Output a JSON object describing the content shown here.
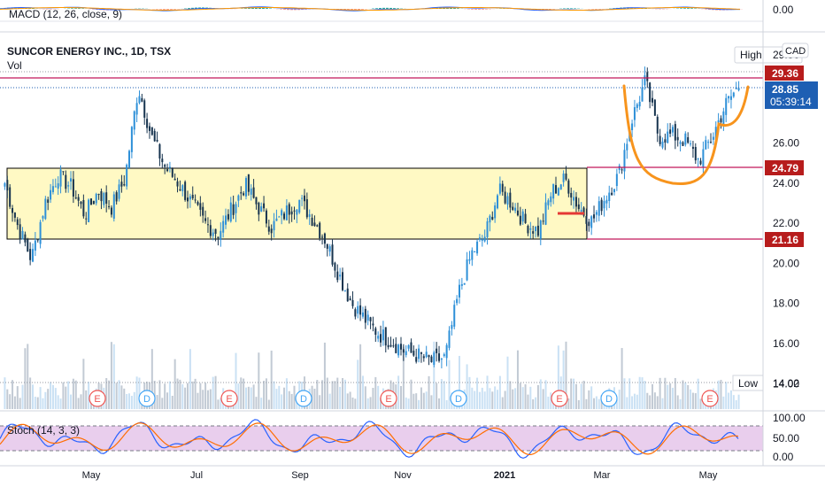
{
  "header": {
    "macd_label": "MACD (12, 26, close, 9)",
    "macd_value": "0.00",
    "symbol_title": "SUNCOR ENERGY INC., 1D, TSX",
    "vol_label": "Vol",
    "currency": "CAD"
  },
  "stoch": {
    "label": "Stoch (14, 3, 3)",
    "ticks": [
      "100.00",
      "50.00",
      "0.00"
    ]
  },
  "price_axis": {
    "ticks": [
      "26.00",
      "24.00",
      "22.00",
      "20.00",
      "18.00",
      "16.00",
      "14.00"
    ]
  },
  "tags": {
    "high_label": "High",
    "high_value": "29.36",
    "last_price": "28.85",
    "countdown": "05:39:14",
    "resistance": "24.79",
    "support": "21.16",
    "low_label": "Low",
    "low_value": "14.02"
  },
  "event_markers": [
    "E",
    "D",
    "E",
    "D",
    "E",
    "D",
    "E",
    "D",
    "E"
  ],
  "colors": {
    "up": "#2e90d8",
    "down": "#17344f",
    "zone_fill": "#fff9c4",
    "red_line": "#c2185b",
    "tag_red": "#b71c1c",
    "tag_blue": "#1e5fb3",
    "drawing_orange": "#f7941d",
    "stoch_fill": "#e1bee7",
    "earnings": "#ef5350",
    "dividend": "#42a5f5"
  },
  "chart_data": {
    "type": "candlestick",
    "title": "SUNCOR ENERGY INC., 1D, TSX",
    "x_tick_labels": [
      "May",
      "Jul",
      "Sep",
      "Nov",
      "2021",
      "Mar",
      "May"
    ],
    "y_tick_labels": [
      "26.00",
      "24.00",
      "22.00",
      "20.00",
      "18.00",
      "16.00",
      "14.00"
    ],
    "y_range": [
      13.3,
      29.8
    ],
    "horizontal_levels": [
      29.36,
      24.79,
      21.16,
      14.02
    ],
    "last_price": 28.85,
    "consolidation_zone": [
      21.16,
      24.79
    ],
    "weekly_closes": [
      [
        "Apr",
        24.0
      ],
      [
        "Apr",
        21.8
      ],
      [
        "Apr",
        20.2
      ],
      [
        "Apr",
        23.0
      ],
      [
        "Apr",
        24.4
      ],
      [
        "May",
        23.8
      ],
      [
        "May",
        22.4
      ],
      [
        "May",
        23.6
      ],
      [
        "May",
        22.8
      ],
      [
        "May",
        24.2
      ],
      [
        "Jun",
        28.8
      ],
      [
        "Jun",
        26.3
      ],
      [
        "Jun",
        24.8
      ],
      [
        "Jun",
        24.0
      ],
      [
        "Jun",
        23.0
      ],
      [
        "Jul",
        22.0
      ],
      [
        "Jul",
        21.5
      ],
      [
        "Jul",
        22.7
      ],
      [
        "Jul",
        23.9
      ],
      [
        "Jul",
        22.8
      ],
      [
        "Aug",
        21.8
      ],
      [
        "Aug",
        22.5
      ],
      [
        "Aug",
        23.2
      ],
      [
        "Aug",
        22.3
      ],
      [
        "Aug",
        21.2
      ],
      [
        "Sep",
        19.5
      ],
      [
        "Sep",
        18.0
      ],
      [
        "Sep",
        17.2
      ],
      [
        "Sep",
        16.5
      ],
      [
        "Oct",
        16.1
      ],
      [
        "Oct",
        15.6
      ],
      [
        "Oct",
        15.4
      ],
      [
        "Oct",
        15.1
      ],
      [
        "Nov",
        15.3
      ],
      [
        "Nov",
        18.5
      ],
      [
        "Nov",
        20.5
      ],
      [
        "Nov",
        21.4
      ],
      [
        "Dec",
        23.6
      ],
      [
        "Dec",
        23.0
      ],
      [
        "Dec",
        22.0
      ],
      [
        "Jan",
        21.6
      ],
      [
        "Jan",
        23.6
      ],
      [
        "Jan",
        24.2
      ],
      [
        "Jan",
        22.8
      ],
      [
        "Feb",
        22.1
      ],
      [
        "Feb",
        23.3
      ],
      [
        "Feb",
        24.4
      ],
      [
        "Mar",
        27.2
      ],
      [
        "Mar",
        29.1
      ],
      [
        "Mar",
        26.3
      ],
      [
        "Mar",
        26.4
      ],
      [
        "Apr",
        26.1
      ],
      [
        "Apr",
        25.1
      ],
      [
        "Apr",
        26.3
      ],
      [
        "May",
        27.9
      ],
      [
        "May",
        28.85
      ]
    ],
    "stochastic": {
      "range": [
        0,
        100
      ],
      "upper_band": 80,
      "lower_band": 20
    }
  }
}
